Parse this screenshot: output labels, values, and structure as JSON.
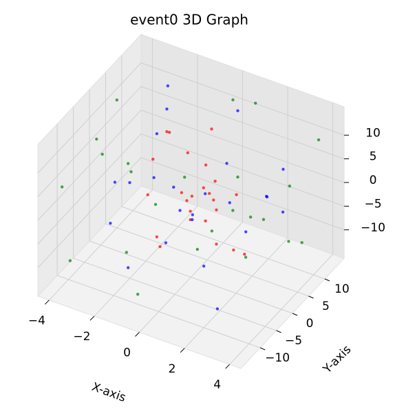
{
  "chart_data": {
    "type": "scatter3d",
    "title": "event0 3D Graph",
    "xlabel": "X-axis",
    "ylabel": "Y-axis",
    "xlim": [
      -4.5,
      4.5
    ],
    "ylim": [
      -16,
      16
    ],
    "zlim": [
      -16,
      16
    ],
    "xticks": [
      {
        "value": -4,
        "label": "−4"
      },
      {
        "value": -2,
        "label": "−2"
      },
      0,
      2,
      4
    ],
    "yticks": [
      {
        "value": -10,
        "label": "−10"
      },
      {
        "value": -5,
        "label": "−5"
      },
      0,
      5,
      10
    ],
    "zticks": [
      {
        "value": -10,
        "label": "−10"
      },
      {
        "value": -5,
        "label": "−5"
      },
      0,
      5,
      10
    ],
    "grid": true,
    "series": [
      {
        "color": "#ff0000",
        "x": [
          -1.5,
          -0.8,
          0.2,
          1.1,
          1.8,
          -1.2,
          0.5,
          1.5,
          -0.3,
          0.9,
          -1.8,
          1.3,
          0.0,
          -0.6,
          1.7,
          -1.4,
          0.7,
          1.0,
          -0.9,
          0.3,
          1.6,
          -1.1,
          0.4,
          -0.2
        ],
        "y": [
          3,
          -4,
          5,
          -2,
          4,
          -5,
          1,
          -3,
          6,
          -6,
          2,
          5,
          -1,
          4,
          -4,
          -2,
          3,
          0,
          5,
          -5,
          2,
          1,
          -3,
          6
        ],
        "z": [
          10,
          -8,
          12,
          5,
          -11,
          3,
          -4,
          9,
          -2,
          7,
          -12,
          0,
          11,
          -6,
          4,
          8,
          -10,
          2,
          -5,
          6,
          -9,
          12,
          -1,
          3
        ]
      },
      {
        "color": "#0000ff",
        "x": [
          -2.5,
          -1.5,
          0.5,
          2.0,
          2.8,
          -2.0,
          1.0,
          -0.5,
          2.5,
          -2.8,
          1.5,
          0.0,
          -1.0,
          2.2,
          -2.2,
          0.8,
          1.8,
          -1.8,
          0.3,
          2.6,
          -2.6,
          1.2,
          -0.8,
          0.6
        ],
        "y": [
          10,
          -9,
          11,
          -10,
          9,
          -11,
          10,
          -8,
          11,
          9,
          -10,
          12,
          -12,
          8,
          10,
          -9,
          11,
          -11,
          9,
          -10,
          11,
          -8,
          10,
          -12
        ],
        "z": [
          8,
          -10,
          12,
          -3,
          5,
          0,
          -12,
          10,
          -6,
          3,
          7,
          -9,
          11,
          -1,
          -8,
          6,
          -4,
          9,
          2,
          -11,
          12,
          4,
          -7,
          1
        ]
      },
      {
        "color": "#008000",
        "x": [
          -4,
          -3.5,
          3.8,
          3.2,
          -2.5,
          2.8,
          -3.8,
          4,
          0,
          -1,
          1.5,
          -4,
          3.5,
          -3,
          2,
          -0.5,
          3.9,
          -3.9,
          1,
          -2,
          2.5,
          -1.5,
          0.5,
          3
        ],
        "y": [
          -12,
          -13,
          13,
          12,
          -10,
          11,
          8,
          -11,
          13,
          -13,
          12,
          5,
          -6,
          10,
          -12,
          -13,
          3,
          -2,
          13,
          12,
          -11,
          -9,
          11,
          -8
        ],
        "z": [
          5,
          -9,
          10,
          -12,
          13,
          0,
          -6,
          3,
          12,
          -3,
          -10,
          11,
          7,
          -13,
          2,
          -11,
          -4,
          8,
          13,
          -7,
          6,
          12,
          -2,
          9
        ]
      }
    ]
  }
}
